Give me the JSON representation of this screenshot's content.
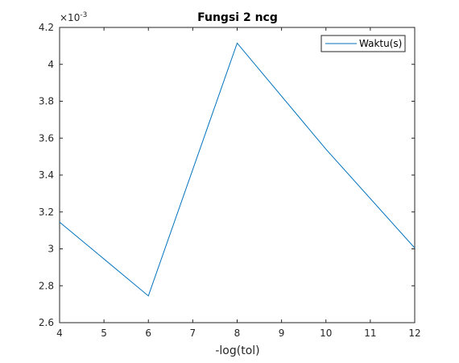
{
  "chart_data": {
    "type": "line",
    "title": "Fungsi 2 ncg",
    "xlabel": "-log(tol)",
    "ylabel": "",
    "x": [
      4,
      6,
      8,
      10,
      12
    ],
    "series": [
      {
        "name": "Waktu(s)",
        "values": [
          3.145,
          2.745,
          4.115,
          3.54,
          3.005
        ],
        "color": "#0072bd"
      }
    ],
    "xlim": [
      4,
      12
    ],
    "ylim": [
      2.6,
      4.2
    ],
    "xticks": [
      4,
      5,
      6,
      7,
      8,
      9,
      10,
      11,
      12
    ],
    "yticks": [
      2.6,
      2.8,
      3,
      3.2,
      3.4,
      3.6,
      3.8,
      4,
      4.2
    ],
    "ytick_labels": [
      "2.6",
      "2.8",
      "3",
      "3.2",
      "3.4",
      "3.6",
      "3.8",
      "4",
      "4.2"
    ],
    "y_exponent_base": "×10",
    "y_exponent_power": "-3",
    "y_unit_scale": "×10^-3",
    "grid": false,
    "legend_position": "top-right",
    "axis_color": "#262626"
  }
}
